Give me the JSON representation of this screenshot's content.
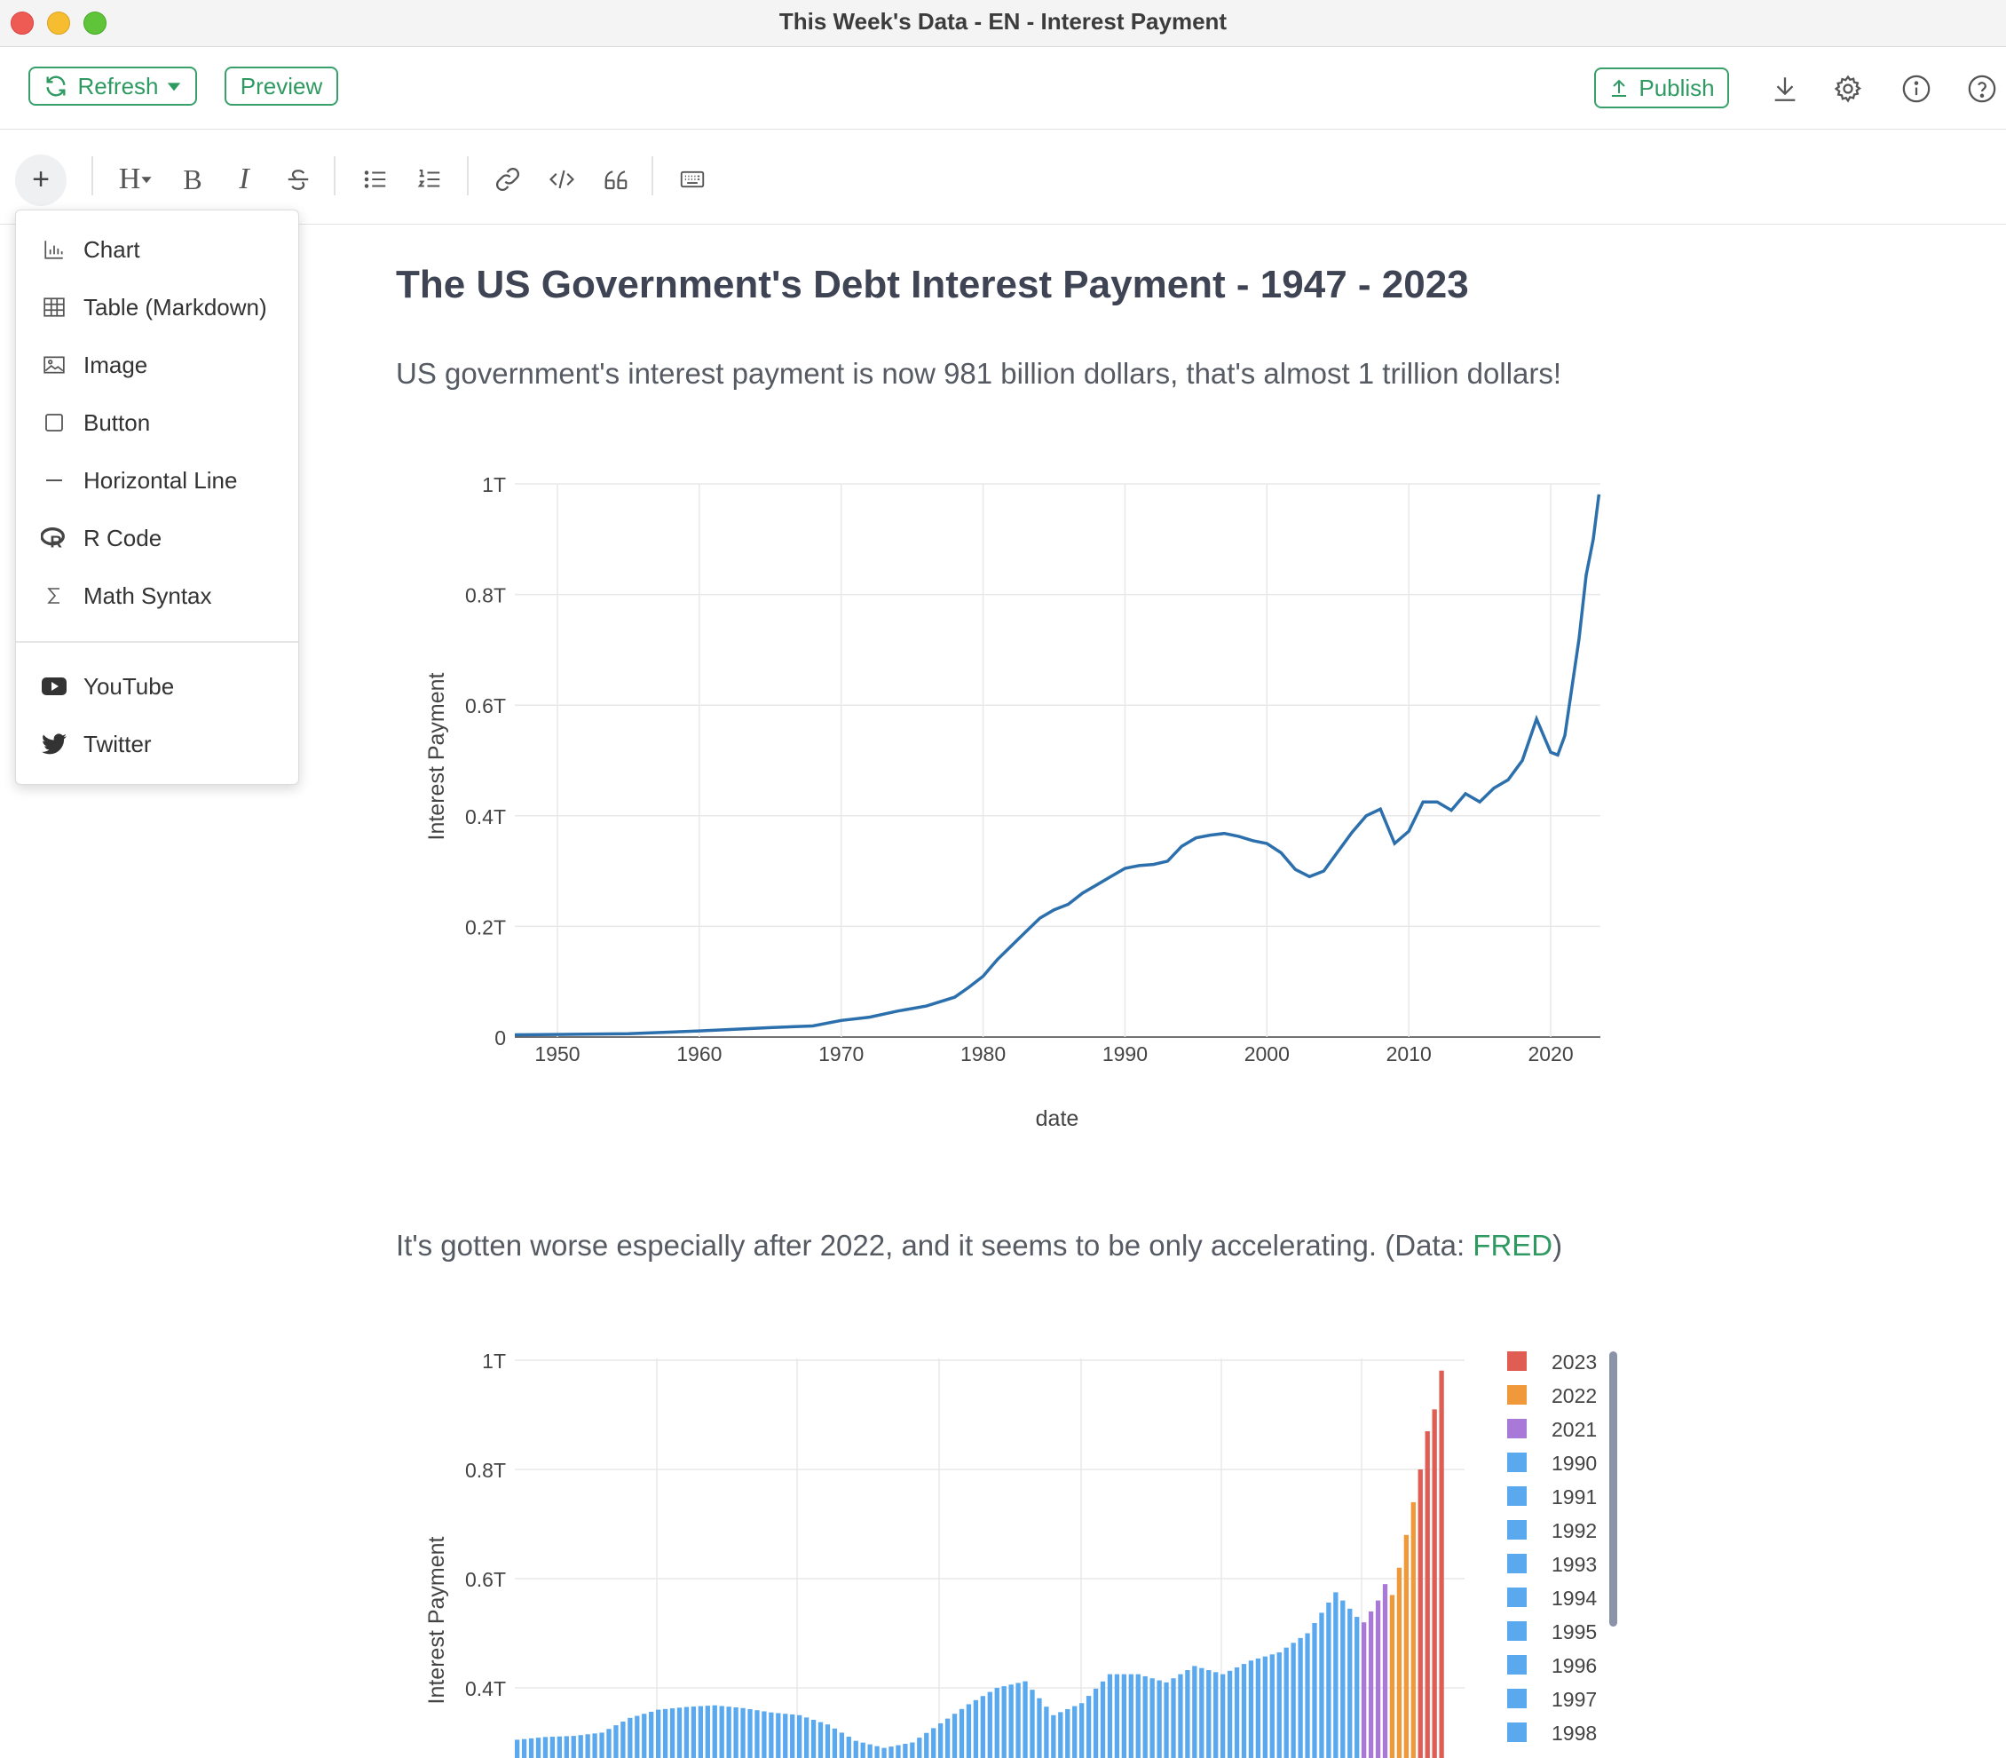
{
  "window": {
    "title": "This Week's Data - EN - Interest Payment"
  },
  "toolbar": {
    "refresh_label": "Refresh",
    "preview_label": "Preview",
    "publish_label": "Publish",
    "accent_color": "#2e9a62"
  },
  "editor_toolbar": {
    "plus_label": "+",
    "heading_label": "H",
    "bold_label": "B",
    "italic_label": "I"
  },
  "insert_menu": {
    "items": [
      {
        "label": "Chart",
        "icon": "bar-chart-icon"
      },
      {
        "label": "Table (Markdown)",
        "icon": "table-icon"
      },
      {
        "label": "Image",
        "icon": "image-icon"
      },
      {
        "label": "Button",
        "icon": "square-icon"
      },
      {
        "label": "Horizontal Line",
        "icon": "minus-icon"
      },
      {
        "label": "R Code",
        "icon": "r-logo-icon"
      },
      {
        "label": "Math Syntax",
        "icon": "sigma-icon"
      }
    ],
    "embed_items": [
      {
        "label": "YouTube",
        "icon": "youtube-icon"
      },
      {
        "label": "Twitter",
        "icon": "twitter-icon"
      }
    ]
  },
  "document": {
    "title": "The US Government's Debt Interest Payment - 1947 - 2023",
    "paragraph1": "US government's interest payment is now 981 billion dollars, that's almost 1 trillion dollars!",
    "paragraph2_prefix": "It's gotten worse especially after 2022, and it seems to be only accelerating. (Data: ",
    "paragraph2_link": "FRED",
    "paragraph2_suffix": ")"
  },
  "chart_data": [
    {
      "type": "line",
      "xlabel": "date",
      "ylabel": "Interest Payment",
      "xlim": [
        1947,
        2023.5
      ],
      "ylim": [
        0,
        1000000000000
      ],
      "x_ticks": [
        "1950",
        "1960",
        "1970",
        "1980",
        "1990",
        "2000",
        "2010",
        "2020"
      ],
      "y_ticks": [
        "0",
        "0.2T",
        "0.4T",
        "0.6T",
        "0.8T",
        "1T"
      ],
      "grid": true,
      "line_color": "#2c6fad",
      "series": [
        {
          "x": [
            1947,
            1955,
            1960,
            1965,
            1968,
            1970,
            1972,
            1974,
            1976,
            1978,
            1979,
            1980,
            1980.5,
            1981,
            1982,
            1983,
            1984,
            1985,
            1986,
            1987,
            1988,
            1989,
            1990,
            1991,
            1992,
            1993,
            1994,
            1995,
            1996,
            1997,
            1998,
            1999,
            2000,
            2001,
            2002,
            2003,
            2004,
            2005,
            2006,
            2007,
            2008,
            2009,
            2010,
            2011,
            2012,
            2013,
            2014,
            2015,
            2016,
            2017,
            2018,
            2019,
            2020,
            2020.5,
            2021,
            2022,
            2022.5,
            2023,
            2023.4
          ],
          "y": [
            4000000000,
            6000000000,
            11000000000,
            17000000000,
            20000000000,
            30000000000,
            36000000000,
            47000000000,
            56000000000,
            72000000000,
            90000000000,
            110000000000,
            125000000000,
            140000000000,
            165000000000,
            190000000000,
            215000000000,
            230000000000,
            240000000000,
            260000000000,
            275000000000,
            290000000000,
            305000000000,
            310000000000,
            312000000000,
            318000000000,
            345000000000,
            360000000000,
            365000000000,
            368000000000,
            363000000000,
            355000000000,
            350000000000,
            333000000000,
            303000000000,
            290000000000,
            300000000000,
            335000000000,
            370000000000,
            400000000000,
            412000000000,
            350000000000,
            372000000000,
            425000000000,
            425000000000,
            410000000000,
            440000000000,
            425000000000,
            450000000000,
            465000000000,
            500000000000,
            575000000000,
            515000000000,
            510000000000,
            545000000000,
            720000000000,
            835000000000,
            900000000000,
            981000000000
          ]
        }
      ]
    },
    {
      "type": "bar",
      "xlabel": "",
      "ylabel": "Interest Payment",
      "y_ticks": [
        "0.4T",
        "0.6T",
        "0.8T",
        "1T"
      ],
      "grid": true,
      "series": [
        {
          "name": "2023",
          "color": "#e05d54",
          "values": [
            800000000000,
            870000000000,
            910000000000,
            981000000000
          ]
        },
        {
          "name": "2022",
          "color": "#f0993b",
          "values": [
            570000000000,
            620000000000,
            680000000000,
            740000000000
          ]
        },
        {
          "name": "2021",
          "color": "#a979d8",
          "values": [
            520000000000,
            540000000000,
            560000000000,
            590000000000
          ]
        },
        {
          "name": "1990",
          "color": "#5aa9ef",
          "values": []
        }
      ],
      "legend_entries": [
        {
          "label": "2023",
          "color": "#e05d54"
        },
        {
          "label": "2022",
          "color": "#f0993b"
        },
        {
          "label": "2021",
          "color": "#a979d8"
        },
        {
          "label": "1990",
          "color": "#5aa9ef"
        },
        {
          "label": "1991",
          "color": "#5aa9ef"
        },
        {
          "label": "1992",
          "color": "#5aa9ef"
        },
        {
          "label": "1993",
          "color": "#5aa9ef"
        },
        {
          "label": "1994",
          "color": "#5aa9ef"
        },
        {
          "label": "1995",
          "color": "#5aa9ef"
        },
        {
          "label": "1996",
          "color": "#5aa9ef"
        },
        {
          "label": "1997",
          "color": "#5aa9ef"
        },
        {
          "label": "1998",
          "color": "#5aa9ef"
        }
      ],
      "legend_placement": "right"
    }
  ]
}
